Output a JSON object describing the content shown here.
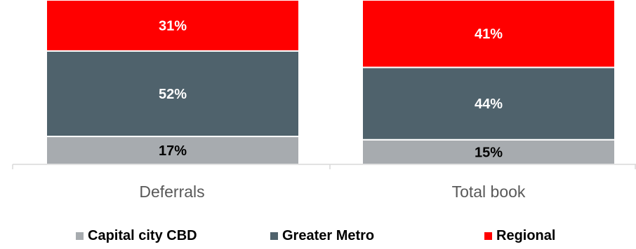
{
  "chart_data": {
    "type": "bar",
    "stacked": true,
    "percent": true,
    "categories": [
      "Deferrals",
      "Total book"
    ],
    "series": [
      {
        "name": "Capital city CBD",
        "values": [
          17,
          15
        ],
        "color": "#a7abaf",
        "label_color": "#000000"
      },
      {
        "name": "Greater Metro",
        "values": [
          52,
          44
        ],
        "color": "#4f626c",
        "label_color": "#ffffff"
      },
      {
        "name": "Regional",
        "values": [
          31,
          41
        ],
        "color": "#ff0000",
        "label_color": "#ffffff"
      }
    ],
    "data_labels": [
      [
        "17%",
        "15%"
      ],
      [
        "52%",
        "44%"
      ],
      [
        "31%",
        "41%"
      ]
    ],
    "ylim": [
      0,
      100
    ],
    "grid": false,
    "legend_position": "bottom"
  }
}
